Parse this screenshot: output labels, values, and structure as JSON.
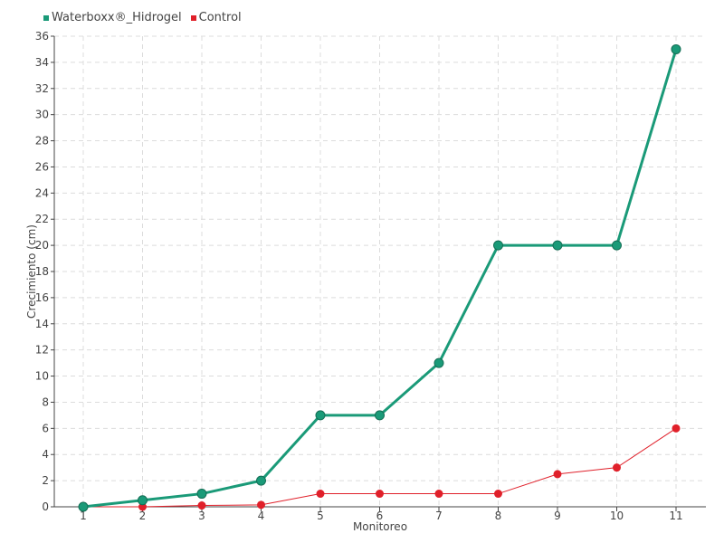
{
  "chart_data": {
    "type": "line",
    "title": "",
    "xlabel": "Monitoreo",
    "ylabel": "Crecimiento (cm)",
    "categories": [
      "1",
      "2",
      "3",
      "4",
      "5",
      "6",
      "7",
      "8",
      "9",
      "10",
      "11"
    ],
    "ylim": [
      0,
      36
    ],
    "ytick_step": 2,
    "grid": true,
    "legend_position": "top-left",
    "series": [
      {
        "name": "Waterboxx®_Hidrogel",
        "color": "#1a9a78",
        "values": [
          0,
          0.5,
          1,
          2,
          7,
          7,
          11,
          20,
          20,
          20,
          35
        ]
      },
      {
        "name": "Control",
        "color": "#e0202a",
        "values": [
          0,
          0,
          0.1,
          0.15,
          1,
          1,
          1,
          1,
          2.5,
          3,
          6
        ]
      }
    ]
  }
}
